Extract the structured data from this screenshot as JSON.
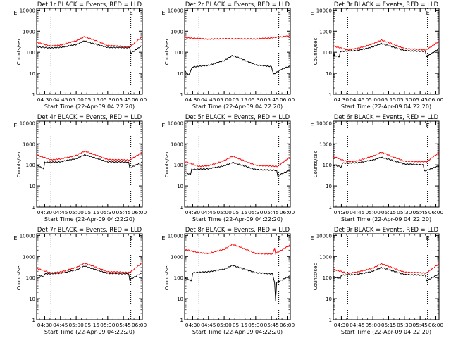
{
  "figure": {
    "xlabel": "Start Time (22-Apr-09 04:22:20)",
    "ylabel": "Counts/sec",
    "x_tick_labels": [
      "04:30",
      "04:45",
      "05:00",
      "05:15",
      "05:30",
      "05:45",
      "06:00"
    ],
    "y_tick_labels": [
      "1",
      "10",
      "100",
      "1000",
      "10000"
    ],
    "flag_labels": [
      "E",
      "E"
    ],
    "colors": {
      "events": "#000000",
      "lld": "#ff0000",
      "axes": "#000000",
      "background": "#ffffff"
    }
  },
  "chart_data": [
    {
      "type": "line",
      "title": "Det 1r BLACK = Events, RED = LLD",
      "x_range": [
        "04:22:20",
        "06:03:00"
      ],
      "ylim": [
        1,
        12000
      ],
      "y_scale": "log",
      "grid": false,
      "vlines": [
        "04:36:00",
        "05:52:00"
      ],
      "series": [
        {
          "name": "Events",
          "points": [
            [
              "04:22",
              180
            ],
            [
              "04:36",
              160
            ],
            [
              "04:45",
              170
            ],
            [
              "05:00",
              230
            ],
            [
              "05:08",
              350
            ],
            [
              "05:16",
              260
            ],
            [
              "05:30",
              170
            ],
            [
              "05:51",
              165
            ],
            [
              "05:52",
              90
            ],
            [
              "06:03",
              210
            ]
          ]
        },
        {
          "name": "LLD",
          "points": [
            [
              "04:22",
              300
            ],
            [
              "04:36",
              195
            ],
            [
              "04:45",
              220
            ],
            [
              "05:00",
              350
            ],
            [
              "05:08",
              550
            ],
            [
              "05:16",
              400
            ],
            [
              "05:30",
              210
            ],
            [
              "05:51",
              180
            ],
            [
              "06:03",
              550
            ]
          ]
        }
      ]
    },
    {
      "type": "line",
      "title": "Det 2r BLACK = Events, RED = LLD",
      "x_range": [
        "04:22:20",
        "06:03:00"
      ],
      "ylim": [
        1,
        12000
      ],
      "y_scale": "log",
      "grid": false,
      "vlines": [
        "04:36:00",
        "05:52:00"
      ],
      "series": [
        {
          "name": "Events",
          "points": [
            [
              "04:22",
              14
            ],
            [
              "04:26",
              8
            ],
            [
              "04:30",
              20
            ],
            [
              "04:45",
              24
            ],
            [
              "05:00",
              40
            ],
            [
              "05:08",
              70
            ],
            [
              "05:16",
              50
            ],
            [
              "05:30",
              25
            ],
            [
              "05:45",
              21
            ],
            [
              "05:47",
              9
            ],
            [
              "05:55",
              16
            ],
            [
              "06:03",
              22
            ]
          ]
        },
        {
          "name": "LLD",
          "points": [
            [
              "04:22",
              490
            ],
            [
              "04:45",
              420
            ],
            [
              "05:00",
              440
            ],
            [
              "05:30",
              430
            ],
            [
              "05:45",
              480
            ],
            [
              "06:03",
              600
            ]
          ]
        }
      ]
    },
    {
      "type": "line",
      "title": "Det 3r BLACK = Events, RED = LLD",
      "x_range": [
        "04:22:20",
        "06:03:00"
      ],
      "ylim": [
        1,
        12000
      ],
      "y_scale": "log",
      "grid": false,
      "vlines": [
        "04:36:00",
        "05:52:00"
      ],
      "series": [
        {
          "name": "Events",
          "points": [
            [
              "04:22",
              75
            ],
            [
              "04:28",
              60
            ],
            [
              "04:29",
              110
            ],
            [
              "04:45",
              120
            ],
            [
              "05:00",
              180
            ],
            [
              "05:08",
              260
            ],
            [
              "05:16",
              200
            ],
            [
              "05:30",
              120
            ],
            [
              "05:50",
              110
            ],
            [
              "05:51",
              60
            ],
            [
              "06:03",
              150
            ]
          ]
        },
        {
          "name": "LLD",
          "points": [
            [
              "04:22",
              200
            ],
            [
              "04:36",
              130
            ],
            [
              "04:45",
              150
            ],
            [
              "05:00",
              250
            ],
            [
              "05:08",
              380
            ],
            [
              "05:16",
              280
            ],
            [
              "05:30",
              150
            ],
            [
              "05:51",
              130
            ],
            [
              "06:03",
              330
            ]
          ]
        }
      ]
    },
    {
      "type": "line",
      "title": "Det 4r BLACK = Events, RED = LLD",
      "x_range": [
        "04:22:20",
        "06:03:00"
      ],
      "ylim": [
        1,
        12000
      ],
      "y_scale": "log",
      "grid": false,
      "vlines": [
        "04:36:00",
        "05:52:00"
      ],
      "series": [
        {
          "name": "Events",
          "points": [
            [
              "04:22",
              100
            ],
            [
              "04:29",
              65
            ],
            [
              "04:30",
              130
            ],
            [
              "04:45",
              140
            ],
            [
              "05:00",
              200
            ],
            [
              "05:08",
              300
            ],
            [
              "05:16",
              230
            ],
            [
              "05:30",
              140
            ],
            [
              "05:50",
              135
            ],
            [
              "05:51",
              70
            ],
            [
              "06:03",
              140
            ]
          ]
        },
        {
          "name": "LLD",
          "points": [
            [
              "04:22",
              300
            ],
            [
              "04:36",
              175
            ],
            [
              "04:45",
              190
            ],
            [
              "05:00",
              280
            ],
            [
              "05:08",
              450
            ],
            [
              "05:16",
              330
            ],
            [
              "05:30",
              180
            ],
            [
              "05:51",
              170
            ],
            [
              "06:03",
              400
            ]
          ]
        }
      ]
    },
    {
      "type": "line",
      "title": "Det 5r BLACK = Events, RED = LLD",
      "x_range": [
        "04:22:20",
        "06:03:00"
      ],
      "ylim": [
        1,
        12000
      ],
      "y_scale": "log",
      "grid": false,
      "vlines": [
        "04:36:00",
        "05:52:00"
      ],
      "series": [
        {
          "name": "Events",
          "points": [
            [
              "04:22",
              45
            ],
            [
              "04:28",
              35
            ],
            [
              "04:29",
              60
            ],
            [
              "04:45",
              65
            ],
            [
              "05:00",
              90
            ],
            [
              "05:08",
              130
            ],
            [
              "05:16",
              100
            ],
            [
              "05:30",
              60
            ],
            [
              "05:50",
              55
            ],
            [
              "05:51",
              30
            ],
            [
              "06:03",
              60
            ]
          ]
        },
        {
          "name": "LLD",
          "points": [
            [
              "04:22",
              150
            ],
            [
              "04:36",
              85
            ],
            [
              "04:45",
              90
            ],
            [
              "05:00",
              160
            ],
            [
              "05:08",
              260
            ],
            [
              "05:16",
              180
            ],
            [
              "05:30",
              95
            ],
            [
              "05:51",
              85
            ],
            [
              "06:03",
              250
            ]
          ]
        }
      ]
    },
    {
      "type": "line",
      "title": "Det 6r BLACK = Events, RED = LLD",
      "x_range": [
        "04:22:20",
        "06:03:00"
      ],
      "ylim": [
        1,
        12000
      ],
      "y_scale": "log",
      "grid": false,
      "vlines": [
        "04:36:00",
        "05:52:00"
      ],
      "series": [
        {
          "name": "Events",
          "points": [
            [
              "04:22",
              100
            ],
            [
              "04:30",
              80
            ],
            [
              "04:31",
              120
            ],
            [
              "04:45",
              125
            ],
            [
              "05:00",
              170
            ],
            [
              "05:08",
              230
            ],
            [
              "05:16",
              180
            ],
            [
              "05:30",
              110
            ],
            [
              "05:48",
              100
            ],
            [
              "05:49",
              50
            ],
            [
              "06:03",
              90
            ]
          ]
        },
        {
          "name": "LLD",
          "points": [
            [
              "04:22",
              250
            ],
            [
              "04:36",
              140
            ],
            [
              "04:45",
              155
            ],
            [
              "05:00",
              260
            ],
            [
              "05:08",
              400
            ],
            [
              "05:16",
              280
            ],
            [
              "05:30",
              150
            ],
            [
              "05:51",
              140
            ],
            [
              "06:03",
              380
            ]
          ]
        }
      ]
    },
    {
      "type": "line",
      "title": "Det 7r BLACK = Events, RED = LLD",
      "x_range": [
        "04:22:20",
        "06:03:00"
      ],
      "ylim": [
        1,
        12000
      ],
      "y_scale": "log",
      "grid": false,
      "vlines": [
        "04:36:00",
        "05:52:00"
      ],
      "series": [
        {
          "name": "Events",
          "points": [
            [
              "04:22",
              140
            ],
            [
              "04:29",
              110
            ],
            [
              "04:30",
              150
            ],
            [
              "04:45",
              160
            ],
            [
              "05:00",
              230
            ],
            [
              "05:08",
              350
            ],
            [
              "05:16",
              260
            ],
            [
              "05:30",
              160
            ],
            [
              "05:50",
              150
            ],
            [
              "05:51",
              80
            ],
            [
              "06:03",
              170
            ]
          ]
        },
        {
          "name": "LLD",
          "points": [
            [
              "04:22",
              280
            ],
            [
              "04:36",
              165
            ],
            [
              "04:45",
              185
            ],
            [
              "05:00",
              300
            ],
            [
              "05:08",
              480
            ],
            [
              "05:16",
              350
            ],
            [
              "05:30",
              190
            ],
            [
              "05:51",
              175
            ],
            [
              "06:03",
              500
            ]
          ]
        }
      ]
    },
    {
      "type": "line",
      "title": "Det 8r BLACK = Events, RED = LLD",
      "x_range": [
        "04:22:20",
        "06:03:00"
      ],
      "ylim": [
        1,
        12000
      ],
      "y_scale": "log",
      "grid": false,
      "vlines": [
        "04:36:00",
        "05:52:00"
      ],
      "series": [
        {
          "name": "Events",
          "points": [
            [
              "04:22",
              100
            ],
            [
              "04:29",
              70
            ],
            [
              "04:30",
              170
            ],
            [
              "04:45",
              190
            ],
            [
              "05:00",
              250
            ],
            [
              "05:08",
              380
            ],
            [
              "05:16",
              280
            ],
            [
              "05:30",
              170
            ],
            [
              "05:46",
              150
            ],
            [
              "05:48",
              60
            ],
            [
              "05:49",
              8
            ],
            [
              "05:50",
              60
            ],
            [
              "06:03",
              120
            ]
          ]
        },
        {
          "name": "LLD",
          "points": [
            [
              "04:22",
              2200
            ],
            [
              "04:36",
              1500
            ],
            [
              "04:45",
              1400
            ],
            [
              "05:00",
              2200
            ],
            [
              "05:08",
              3800
            ],
            [
              "05:16",
              2700
            ],
            [
              "05:30",
              1400
            ],
            [
              "05:46",
              1300
            ],
            [
              "05:48",
              2500
            ],
            [
              "05:49",
              1400
            ],
            [
              "06:03",
              3500
            ]
          ]
        }
      ]
    },
    {
      "type": "line",
      "title": "Det 9r BLACK = Events, RED = LLD",
      "x_range": [
        "04:22:20",
        "06:03:00"
      ],
      "ylim": [
        1,
        12000
      ],
      "y_scale": "log",
      "grid": false,
      "vlines": [
        "04:36:00",
        "05:52:00"
      ],
      "series": [
        {
          "name": "Events",
          "points": [
            [
              "04:22",
              110
            ],
            [
              "04:29",
              90
            ],
            [
              "04:30",
              130
            ],
            [
              "04:45",
              140
            ],
            [
              "05:00",
              200
            ],
            [
              "05:08",
              300
            ],
            [
              "05:16",
              230
            ],
            [
              "05:30",
              140
            ],
            [
              "05:50",
              130
            ],
            [
              "05:51",
              70
            ],
            [
              "06:03",
              150
            ]
          ]
        },
        {
          "name": "LLD",
          "points": [
            [
              "04:22",
              250
            ],
            [
              "04:36",
              160
            ],
            [
              "04:45",
              180
            ],
            [
              "05:00",
              280
            ],
            [
              "05:08",
              450
            ],
            [
              "05:16",
              330
            ],
            [
              "05:30",
              180
            ],
            [
              "05:51",
              165
            ],
            [
              "06:03",
              450
            ]
          ]
        }
      ]
    }
  ]
}
